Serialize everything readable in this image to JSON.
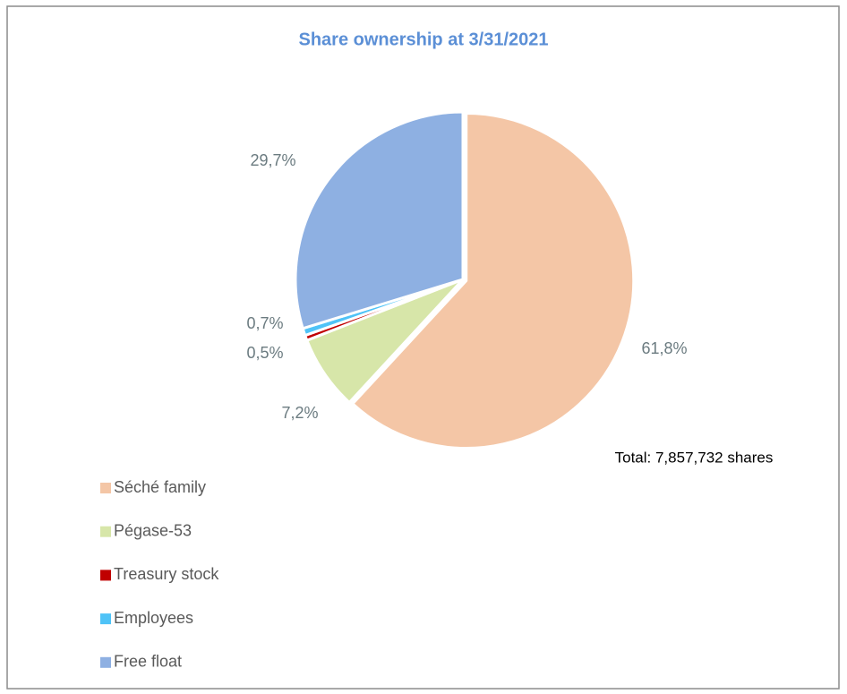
{
  "chart_data": {
    "type": "pie",
    "title": "Share ownership at 3/31/2021",
    "categories": [
      "Séché family",
      "Pégase-53",
      "Treasury stock",
      "Employees",
      "Free float"
    ],
    "values": [
      61.8,
      7.2,
      0.5,
      0.7,
      29.7
    ],
    "value_labels": [
      "61,8%",
      "7,2%",
      "0,5%",
      "0,7%",
      "29,7%"
    ],
    "colors": [
      "#f4c6a6",
      "#d7e6a9",
      "#c00000",
      "#4fc3f7",
      "#8eb0e2"
    ],
    "annotation": "Total: 7,857,732 shares",
    "legend": "bottom-left"
  }
}
